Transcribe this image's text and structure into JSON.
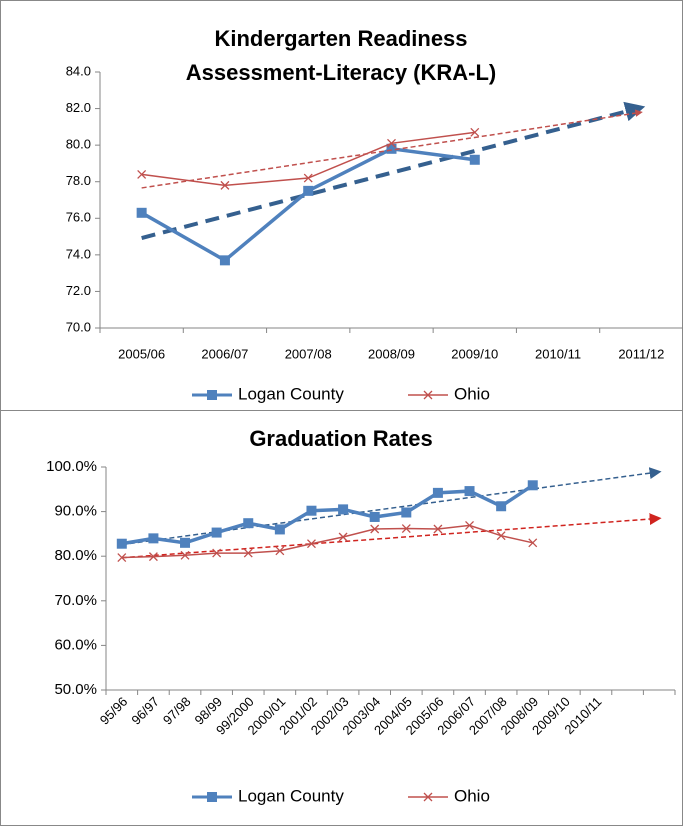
{
  "chart_data": [
    {
      "type": "line",
      "title": [
        "Kindergarten Readiness",
        "Assessment-Literacy (KRA-L)"
      ],
      "categories": [
        "2005/06",
        "2006/07",
        "2007/08",
        "2008/09",
        "2009/10",
        "2010/11",
        "2011/12"
      ],
      "series": [
        {
          "name": "Logan County",
          "color": "#4f81bd",
          "marker": "square",
          "trend_color": "#35608f",
          "values": [
            76.3,
            73.7,
            77.5,
            79.8,
            79.2,
            null,
            null
          ]
        },
        {
          "name": "Ohio",
          "color": "#c0504d",
          "marker": "x",
          "trend_color": "#c0504d",
          "values": [
            78.4,
            77.8,
            78.2,
            80.1,
            80.7,
            null,
            null
          ]
        }
      ],
      "ylim": [
        70,
        84
      ],
      "yticks": [
        {
          "value": 70,
          "label": "70.0"
        },
        {
          "value": 72,
          "label": "72.0"
        },
        {
          "value": 74,
          "label": "74.0"
        },
        {
          "value": 76,
          "label": "76.0"
        },
        {
          "value": 78,
          "label": "78.0"
        },
        {
          "value": 80,
          "label": "80.0"
        },
        {
          "value": 82,
          "label": "82.0"
        },
        {
          "value": 84,
          "label": "84.0"
        }
      ],
      "trendline": true,
      "grid": false,
      "legend": "bottom"
    },
    {
      "type": "line",
      "title": [
        "Graduation Rates"
      ],
      "categories": [
        "95/96",
        "96/97",
        "97/98",
        "98/99",
        "99/2000",
        "2000/01",
        "2001/02",
        "2002/03",
        "2003/04",
        "2004/05",
        "2005/06",
        "2006/07",
        "2007/08",
        "2008/09",
        "2009/10",
        "2010/11",
        null,
        null
      ],
      "series": [
        {
          "name": "Logan County",
          "color": "#4f81bd",
          "marker": "square",
          "trend_color": "#35608f",
          "values": [
            82.8,
            84.0,
            83.0,
            85.3,
            87.4,
            86.0,
            90.2,
            90.5,
            88.8,
            89.8,
            94.2,
            94.6,
            91.2,
            95.9,
            null,
            null,
            null,
            null
          ]
        },
        {
          "name": "Ohio",
          "color": "#c0504d",
          "marker": "x",
          "trend_color": "#d0241f",
          "values": [
            79.7,
            79.9,
            80.2,
            80.7,
            80.7,
            81.2,
            82.8,
            84.3,
            86.1,
            86.2,
            86.1,
            86.9,
            84.6,
            83.0,
            null,
            null,
            null,
            null
          ]
        }
      ],
      "ylim": [
        50,
        100
      ],
      "yticks": [
        {
          "value": 50,
          "label": "50.0%"
        },
        {
          "value": 60,
          "label": "60.0%"
        },
        {
          "value": 70,
          "label": "70.0%"
        },
        {
          "value": 80,
          "label": "80.0%"
        },
        {
          "value": 90,
          "label": "90.0%"
        },
        {
          "value": 100,
          "label": "100.0%"
        }
      ],
      "trendline": true,
      "grid": false,
      "legend": "bottom"
    }
  ]
}
